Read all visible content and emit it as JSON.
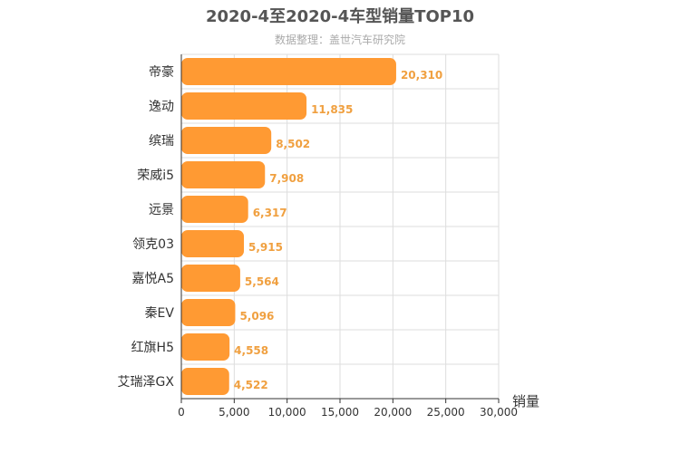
{
  "chart_data": {
    "type": "bar",
    "orientation": "horizontal",
    "title": "2020-4至2020-4车型销量TOP10",
    "subtitle": "数据整理：盖世汽车研究院",
    "xlabel": "销量",
    "ylabel": "",
    "xlim": [
      0,
      30000
    ],
    "xticks": [
      0,
      5000,
      10000,
      15000,
      20000,
      25000,
      30000
    ],
    "xtick_labels": [
      "0",
      "5,000",
      "10,000",
      "15,000",
      "20,000",
      "25,000",
      "30,000"
    ],
    "categories": [
      "帝豪",
      "逸动",
      "缤瑞",
      "荣威i5",
      "远景",
      "领克03",
      "嘉悦A5",
      "秦EV",
      "红旗H5",
      "艾瑞泽GX"
    ],
    "values": [
      20310,
      11835,
      8502,
      7908,
      6317,
      5915,
      5564,
      5096,
      4558,
      4522
    ],
    "value_labels": [
      "20,310",
      "11,835",
      "8,502",
      "7,908",
      "6,317",
      "5,915",
      "5,564",
      "5,096",
      "4,558",
      "4,522"
    ],
    "grid": true,
    "bar_color": "#ff9a33",
    "value_label_color": "#f0a040"
  }
}
